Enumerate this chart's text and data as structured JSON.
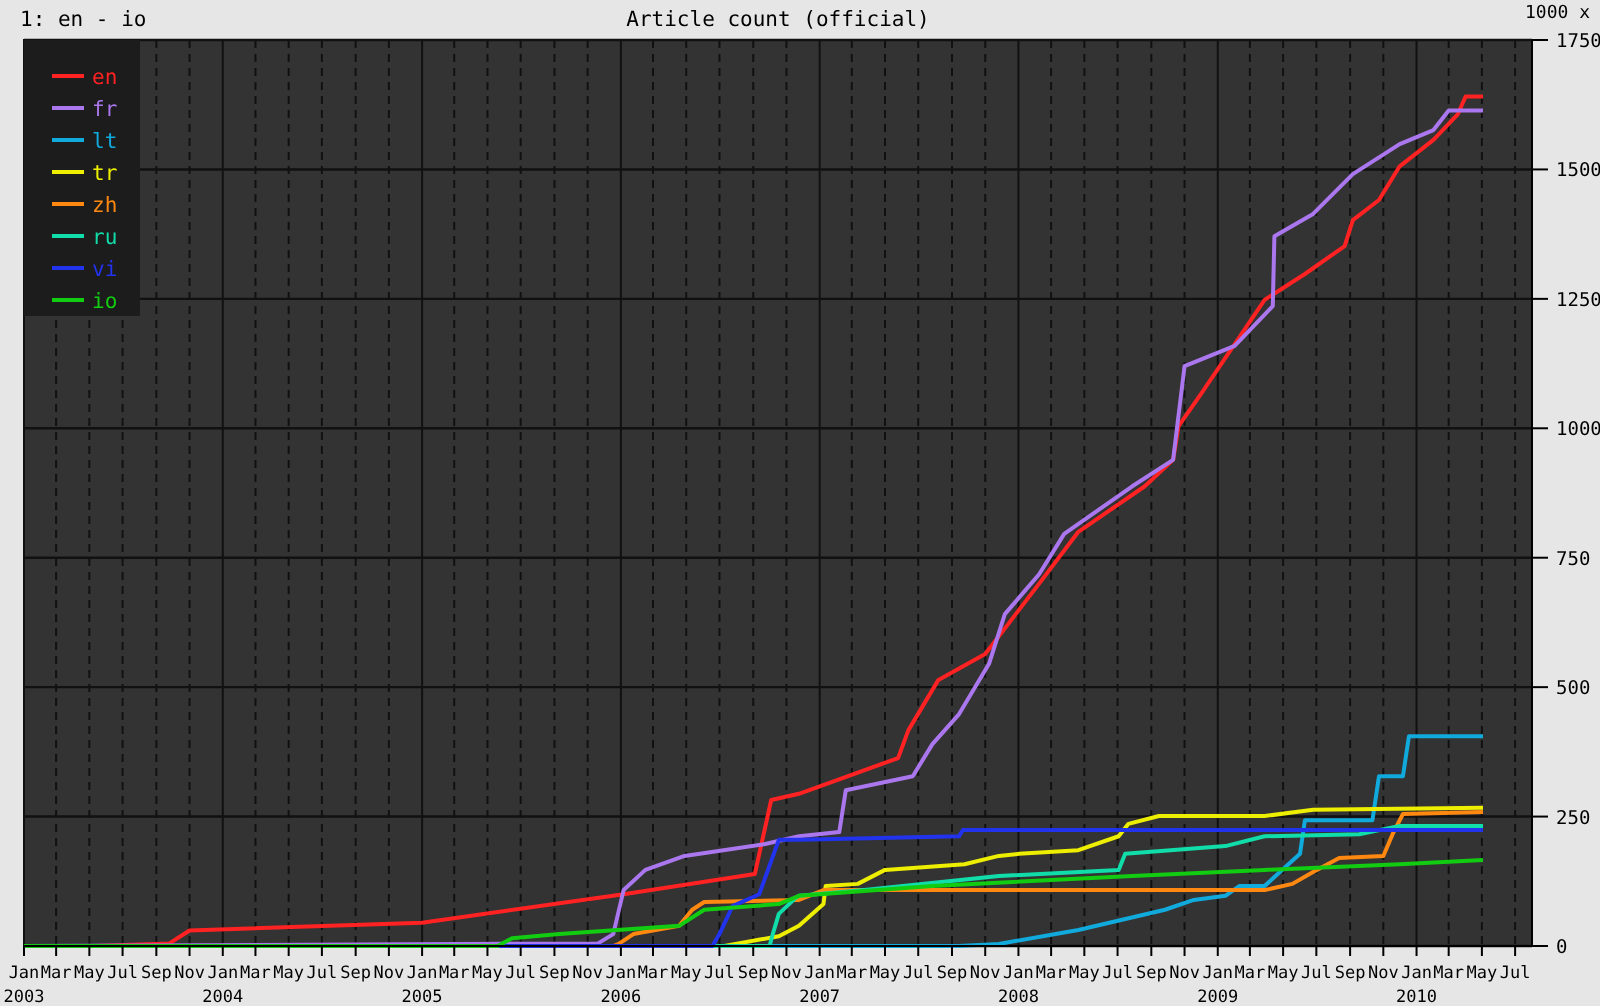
{
  "chart_data": {
    "type": "line",
    "title": "Article count (official)",
    "ylabel": "1000 x",
    "annotations": [
      "1: en - io"
    ],
    "xlim": [
      "2003-01-01",
      "2010-08-01"
    ],
    "ylim": [
      0,
      1750
    ],
    "yticks": [
      0,
      250,
      500,
      750,
      1000,
      1250,
      1500,
      1750
    ],
    "xticks": [
      {
        "value": "2003-01-01",
        "label": "Jan 2003"
      },
      {
        "value": "2003-03-01",
        "label": "Mar"
      },
      {
        "value": "2003-05-01",
        "label": "May"
      },
      {
        "value": "2003-07-01",
        "label": "Jul"
      },
      {
        "value": "2003-09-01",
        "label": "Sep"
      },
      {
        "value": "2003-11-01",
        "label": "Nov"
      },
      {
        "value": "2004-01-01",
        "label": "Jan 2004"
      },
      {
        "value": "2004-03-01",
        "label": "Mar"
      },
      {
        "value": "2004-05-01",
        "label": "May"
      },
      {
        "value": "2004-07-01",
        "label": "Jul"
      },
      {
        "value": "2004-09-01",
        "label": "Sep"
      },
      {
        "value": "2004-11-01",
        "label": "Nov"
      },
      {
        "value": "2005-01-01",
        "label": "Jan 2005"
      },
      {
        "value": "2005-03-01",
        "label": "Mar"
      },
      {
        "value": "2005-05-01",
        "label": "May"
      },
      {
        "value": "2005-07-01",
        "label": "Jul"
      },
      {
        "value": "2005-09-01",
        "label": "Sep"
      },
      {
        "value": "2005-11-01",
        "label": "Nov"
      },
      {
        "value": "2006-01-01",
        "label": "Jan 2006"
      },
      {
        "value": "2006-03-01",
        "label": "Mar"
      },
      {
        "value": "2006-05-01",
        "label": "May"
      },
      {
        "value": "2006-07-01",
        "label": "Jul"
      },
      {
        "value": "2006-09-01",
        "label": "Sep"
      },
      {
        "value": "2006-11-01",
        "label": "Nov"
      },
      {
        "value": "2007-01-01",
        "label": "Jan 2007"
      },
      {
        "value": "2007-03-01",
        "label": "Mar"
      },
      {
        "value": "2007-05-01",
        "label": "May"
      },
      {
        "value": "2007-07-01",
        "label": "Jul"
      },
      {
        "value": "2007-09-01",
        "label": "Sep"
      },
      {
        "value": "2007-11-01",
        "label": "Nov"
      },
      {
        "value": "2008-01-01",
        "label": "Jan 2008"
      },
      {
        "value": "2008-03-01",
        "label": "Mar"
      },
      {
        "value": "2008-05-01",
        "label": "May"
      },
      {
        "value": "2008-07-01",
        "label": "Jul"
      },
      {
        "value": "2008-09-01",
        "label": "Sep"
      },
      {
        "value": "2008-11-01",
        "label": "Nov"
      },
      {
        "value": "2009-01-01",
        "label": "Jan 2009"
      },
      {
        "value": "2009-03-01",
        "label": "Mar"
      },
      {
        "value": "2009-05-01",
        "label": "May"
      },
      {
        "value": "2009-07-01",
        "label": "Jul"
      },
      {
        "value": "2009-09-01",
        "label": "Sep"
      },
      {
        "value": "2009-11-01",
        "label": "Nov"
      },
      {
        "value": "2010-01-01",
        "label": "Jan 2010"
      },
      {
        "value": "2010-03-01",
        "label": "Mar"
      },
      {
        "value": "2010-05-01",
        "label": "May"
      },
      {
        "value": "2010-07-01",
        "label": "Jul"
      }
    ],
    "grid": true,
    "legend": "top left",
    "series": [
      {
        "name": "en",
        "color": "#ff2222",
        "x": [
          "2003-01-01",
          "2003-05-10",
          "2003-09-25",
          "2003-11-01",
          "2005-01-01",
          "2006-01-06",
          "2006-09-04",
          "2006-10-04",
          "2006-11-24",
          "2007-05-25",
          "2007-06-13",
          "2007-08-07",
          "2007-11-01",
          "2008-02-08",
          "2008-04-20",
          "2008-08-20",
          "2008-10-11",
          "2008-10-21",
          "2008-12-01",
          "2009-03-28",
          "2009-06-10",
          "2009-08-22",
          "2009-09-06",
          "2009-10-24",
          "2009-12-01",
          "2010-02-01",
          "2010-03-18",
          "2010-04-01",
          "2010-05-03"
        ],
        "values": [
          0,
          0,
          5,
          30,
          45,
          100,
          139,
          282,
          294,
          363,
          417,
          514,
          564,
          700,
          800,
          888,
          939,
          1004,
          1066,
          1248,
          1298,
          1352,
          1402,
          1441,
          1506,
          1557,
          1607,
          1641,
          1641
        ]
      },
      {
        "name": "fr",
        "color": "#aa77ee",
        "x": [
          "2003-01-01",
          "2005-11-20",
          "2005-12-18",
          "2006-01-06",
          "2006-02-15",
          "2006-04-28",
          "2006-09-23",
          "2006-11-24",
          "2007-02-06",
          "2007-02-18",
          "2007-06-21",
          "2007-07-27",
          "2007-09-14",
          "2007-11-08",
          "2007-12-07",
          "2008-02-08",
          "2008-03-25",
          "2008-07-28",
          "2008-10-11",
          "2008-11-01",
          "2009-02-01",
          "2009-04-12",
          "2009-04-15",
          "2009-06-25",
          "2009-09-06",
          "2009-12-01",
          "2010-02-01",
          "2010-03-01",
          "2010-05-03"
        ],
        "values": [
          0,
          5,
          23,
          108,
          147,
          174,
          197,
          212,
          220,
          301,
          328,
          390,
          448,
          545,
          641,
          718,
          796,
          888,
          939,
          1120,
          1159,
          1236,
          1371,
          1414,
          1491,
          1549,
          1576,
          1614,
          1614
        ]
      },
      {
        "name": "lt",
        "color": "#11aadd",
        "x": [
          "2003-01-01",
          "2007-09-14",
          "2007-11-26",
          "2008-04-20",
          "2008-09-26",
          "2008-11-18",
          "2009-01-15",
          "2009-02-10",
          "2009-03-28",
          "2009-06-01",
          "2009-06-10",
          "2009-10-12",
          "2009-10-24",
          "2009-12-07",
          "2009-12-18",
          "2010-05-03"
        ],
        "values": [
          0,
          0,
          4,
          31,
          70,
          89,
          97,
          116,
          116,
          178,
          243,
          243,
          328,
          328,
          405,
          405
        ]
      },
      {
        "name": "tr",
        "color": "#eeee00",
        "x": [
          "2003-01-01",
          "2006-07-10",
          "2006-10-18",
          "2006-11-24",
          "2007-01-08",
          "2007-01-12",
          "2007-03-12",
          "2007-05-01",
          "2007-09-24",
          "2007-11-26",
          "2008-01-02",
          "2008-04-20",
          "2008-07-03",
          "2008-07-21",
          "2008-09-15",
          "2009-03-28",
          "2009-06-25",
          "2010-05-03"
        ],
        "values": [
          0,
          0,
          19,
          39,
          81,
          116,
          120,
          147,
          158,
          174,
          178,
          185,
          212,
          236,
          251,
          251,
          263,
          267
        ]
      },
      {
        "name": "zh",
        "color": "#ff8811",
        "x": [
          "2003-01-01",
          "2005-12-18",
          "2005-12-28",
          "2006-01-24",
          "2006-04-18",
          "2006-05-12",
          "2006-06-03",
          "2006-11-24",
          "2007-01-08",
          "2007-09-14",
          "2009-03-28",
          "2009-05-18",
          "2009-06-25",
          "2009-08-12",
          "2009-11-01",
          "2009-11-18",
          "2009-12-07",
          "2010-05-03"
        ],
        "values": [
          0,
          0,
          4,
          23,
          39,
          70,
          85,
          89,
          108,
          108,
          108,
          120,
          143,
          170,
          174,
          216,
          255,
          259
        ]
      },
      {
        "name": "ru",
        "color": "#11ddaa",
        "x": [
          "2003-01-01",
          "2006-10-01",
          "2006-10-07",
          "2006-10-18",
          "2006-11-18",
          "2006-11-24",
          "2007-03-24",
          "2007-11-26",
          "2008-07-03",
          "2008-07-15",
          "2009-01-15",
          "2009-03-28",
          "2009-09-18",
          "2009-12-01",
          "2010-05-03"
        ],
        "values": [
          0,
          0,
          23,
          62,
          93,
          97,
          108,
          135,
          147,
          178,
          193,
          212,
          216,
          232,
          232
        ]
      },
      {
        "name": "vi",
        "color": "#2233ee",
        "x": [
          "2003-01-01",
          "2006-06-18",
          "2006-07-01",
          "2006-07-25",
          "2006-09-12",
          "2006-10-18",
          "2006-11-24",
          "2007-09-14",
          "2007-09-21",
          "2010-05-03"
        ],
        "values": [
          0,
          0,
          23,
          77,
          100,
          205,
          205,
          212,
          224,
          224
        ]
      },
      {
        "name": "io",
        "color": "#11cc11",
        "x": [
          "2003-01-01",
          "2005-05-20",
          "2005-06-15",
          "2005-09-10",
          "2006-04-18",
          "2006-06-03",
          "2006-10-18",
          "2006-11-24",
          "2007-07-27",
          "2008-07-28",
          "2009-03-28",
          "2009-12-01",
          "2010-05-03"
        ],
        "values": [
          0,
          0,
          15,
          23,
          39,
          70,
          81,
          97,
          116,
          135,
          147,
          158,
          166
        ]
      }
    ]
  }
}
